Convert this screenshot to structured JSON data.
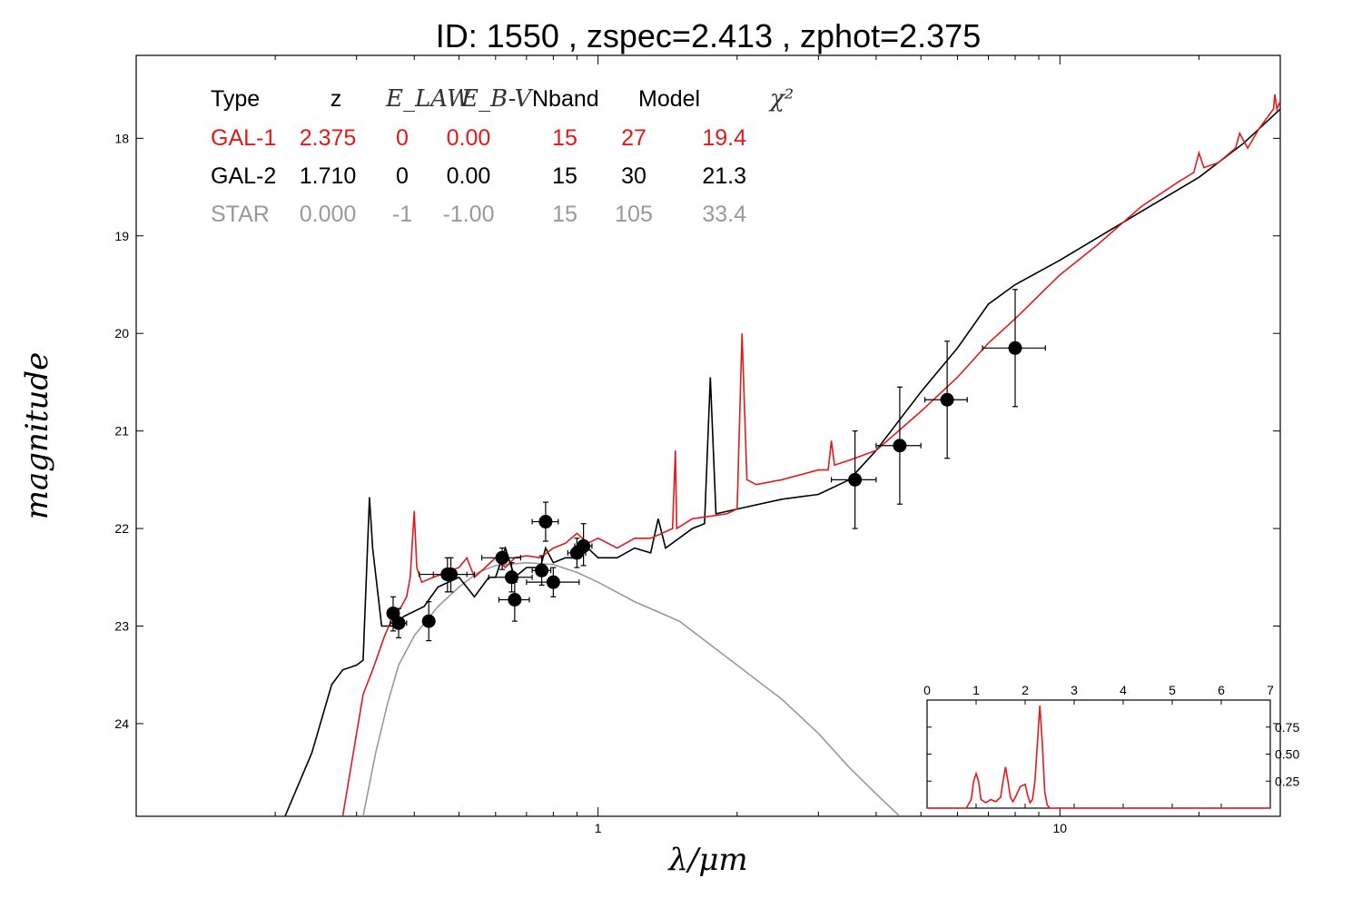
{
  "title": "ID:  1550  , zspec=2.413 , zphot=2.375",
  "colors": {
    "gal1": "#e3191c",
    "gal2": "#000000",
    "star": "#999999",
    "points": "#000000"
  },
  "chart_data": {
    "type": "scatter",
    "title": "ID:  1550  , zspec=2.413 , zphot=2.375",
    "xlabel": "λ/μm",
    "ylabel": "magnitude",
    "x_scale": "log",
    "xlim": [
      0.1,
      30
    ],
    "ylim": [
      24.95,
      17.15
    ],
    "y_inverted": true,
    "grid": false,
    "x_ticks": [
      {
        "v": 1,
        "label": "1"
      },
      {
        "v": 10,
        "label": "10"
      }
    ],
    "y_ticks": [
      {
        "v": 18,
        "label": "18"
      },
      {
        "v": 19,
        "label": "19"
      },
      {
        "v": 20,
        "label": "20"
      },
      {
        "v": 21,
        "label": "21"
      },
      {
        "v": 22,
        "label": "22"
      },
      {
        "v": 23,
        "label": "23"
      },
      {
        "v": 24,
        "label": "24"
      }
    ],
    "legend_table": {
      "headers": [
        "Type",
        "z",
        "E_LAW",
        "E_B-V",
        "Nband",
        "Model",
        "χ²"
      ],
      "rows": [
        {
          "cells": [
            "GAL-1",
            "2.375",
            "0",
            "0.00",
            "15",
            "27",
            "19.4"
          ],
          "color": "#e3191c"
        },
        {
          "cells": [
            "GAL-2",
            "1.710",
            "0",
            "0.00",
            "15",
            "30",
            "21.3"
          ],
          "color": "#000000"
        },
        {
          "cells": [
            "STAR",
            "0.000",
            "-1",
            "-1.00",
            "15",
            "105",
            "33.4"
          ],
          "color": "#999999"
        }
      ]
    },
    "photometry": [
      {
        "x": 0.36,
        "y": 22.87,
        "xerr": [
          0.352,
          0.368
        ],
        "yerr": [
          22.7,
          23.05
        ]
      },
      {
        "x": 0.37,
        "y": 22.97,
        "xerr": [
          0.355,
          0.385
        ],
        "yerr": [
          22.82,
          23.12
        ]
      },
      {
        "x": 0.43,
        "y": 22.95,
        "xerr": [
          0.42,
          0.44
        ],
        "yerr": [
          22.75,
          23.15
        ]
      },
      {
        "x": 0.472,
        "y": 22.47,
        "xerr": [
          0.41,
          0.54
        ],
        "yerr": [
          22.3,
          22.65
        ]
      },
      {
        "x": 0.48,
        "y": 22.47,
        "xerr": [
          0.44,
          0.52
        ],
        "yerr": [
          22.3,
          22.65
        ]
      },
      {
        "x": 0.62,
        "y": 22.3,
        "xerr": [
          0.56,
          0.68
        ],
        "yerr": [
          22.2,
          22.42
        ]
      },
      {
        "x": 0.65,
        "y": 22.5,
        "xerr": [
          0.58,
          0.72
        ],
        "yerr": [
          22.35,
          22.65
        ]
      },
      {
        "x": 0.66,
        "y": 22.73,
        "xerr": [
          0.61,
          0.71
        ],
        "yerr": [
          22.55,
          22.95
        ]
      },
      {
        "x": 0.755,
        "y": 22.43,
        "xerr": [
          0.72,
          0.79
        ],
        "yerr": [
          22.28,
          22.58
        ]
      },
      {
        "x": 0.77,
        "y": 21.93,
        "xerr": [
          0.72,
          0.82
        ],
        "yerr": [
          21.73,
          22.13
        ]
      },
      {
        "x": 0.8,
        "y": 22.55,
        "xerr": [
          0.7,
          0.91
        ],
        "yerr": [
          22.4,
          22.7
        ]
      },
      {
        "x": 0.9,
        "y": 22.25,
        "xerr": [
          0.86,
          0.94
        ],
        "yerr": [
          22.1,
          22.4
        ]
      },
      {
        "x": 0.93,
        "y": 22.18,
        "xerr": [
          0.89,
          0.97
        ],
        "yerr": [
          21.95,
          22.38
        ]
      },
      {
        "x": 3.6,
        "y": 21.5,
        "xerr": [
          3.2,
          4.0
        ],
        "yerr": [
          21.0,
          22.0
        ]
      },
      {
        "x": 4.5,
        "y": 21.15,
        "xerr": [
          4.0,
          5.0
        ],
        "yerr": [
          20.55,
          21.75
        ]
      },
      {
        "x": 5.7,
        "y": 20.68,
        "xerr": [
          5.1,
          6.3
        ],
        "yerr": [
          20.08,
          21.28
        ]
      },
      {
        "x": 8.0,
        "y": 20.15,
        "xerr": [
          6.8,
          9.3
        ],
        "yerr": [
          19.55,
          20.75
        ]
      }
    ],
    "series": [
      {
        "name": "GAL-1",
        "color": "#e3191c",
        "points": [
          [
            0.28,
            24.95
          ],
          [
            0.3,
            24.1
          ],
          [
            0.31,
            23.7
          ],
          [
            0.325,
            23.45
          ],
          [
            0.345,
            23.1
          ],
          [
            0.36,
            22.9
          ],
          [
            0.375,
            22.8
          ],
          [
            0.385,
            22.7
          ],
          [
            0.392,
            22.5
          ],
          [
            0.4,
            21.82
          ],
          [
            0.405,
            22.4
          ],
          [
            0.415,
            22.55
          ],
          [
            0.44,
            22.5
          ],
          [
            0.47,
            22.45
          ],
          [
            0.5,
            22.4
          ],
          [
            0.52,
            22.3
          ],
          [
            0.54,
            22.5
          ],
          [
            0.57,
            22.4
          ],
          [
            0.6,
            22.3
          ],
          [
            0.63,
            22.4
          ],
          [
            0.66,
            22.3
          ],
          [
            0.7,
            22.28
          ],
          [
            0.75,
            22.3
          ],
          [
            0.8,
            22.2
          ],
          [
            0.85,
            22.15
          ],
          [
            0.9,
            22.05
          ],
          [
            0.95,
            22.15
          ],
          [
            1.0,
            22.1
          ],
          [
            1.1,
            22.2
          ],
          [
            1.2,
            22.1
          ],
          [
            1.3,
            22.1
          ],
          [
            1.45,
            22.0
          ],
          [
            1.47,
            21.2
          ],
          [
            1.48,
            22.0
          ],
          [
            1.6,
            21.9
          ],
          [
            1.9,
            21.85
          ],
          [
            2.0,
            21.8
          ],
          [
            2.05,
            20.0
          ],
          [
            2.1,
            21.5
          ],
          [
            2.2,
            21.55
          ],
          [
            2.5,
            21.5
          ],
          [
            3.0,
            21.4
          ],
          [
            3.15,
            21.4
          ],
          [
            3.2,
            21.1
          ],
          [
            3.25,
            21.35
          ],
          [
            3.5,
            21.3
          ],
          [
            4.0,
            21.2
          ],
          [
            5.0,
            20.8
          ],
          [
            6.0,
            20.45
          ],
          [
            7.0,
            20.1
          ],
          [
            8.0,
            19.85
          ],
          [
            10.0,
            19.4
          ],
          [
            12.0,
            19.1
          ],
          [
            15.0,
            18.7
          ],
          [
            18.0,
            18.45
          ],
          [
            19.5,
            18.35
          ],
          [
            20.0,
            18.15
          ],
          [
            20.5,
            18.3
          ],
          [
            22.0,
            18.25
          ],
          [
            24.0,
            18.1
          ],
          [
            24.5,
            17.95
          ],
          [
            25.5,
            18.1
          ],
          [
            27.0,
            17.9
          ],
          [
            29.0,
            17.7
          ],
          [
            29.2,
            17.55
          ],
          [
            29.5,
            17.7
          ],
          [
            30.0,
            17.62
          ]
        ]
      },
      {
        "name": "GAL-2",
        "color": "#000000",
        "points": [
          [
            0.21,
            24.95
          ],
          [
            0.24,
            24.3
          ],
          [
            0.265,
            23.6
          ],
          [
            0.28,
            23.45
          ],
          [
            0.3,
            23.4
          ],
          [
            0.31,
            23.35
          ],
          [
            0.32,
            21.68
          ],
          [
            0.325,
            22.2
          ],
          [
            0.34,
            23.0
          ],
          [
            0.36,
            23.0
          ],
          [
            0.38,
            22.9
          ],
          [
            0.42,
            22.8
          ],
          [
            0.45,
            22.6
          ],
          [
            0.5,
            22.5
          ],
          [
            0.54,
            22.7
          ],
          [
            0.58,
            22.5
          ],
          [
            0.6,
            22.5
          ],
          [
            0.63,
            22.2
          ],
          [
            0.66,
            22.5
          ],
          [
            0.7,
            22.4
          ],
          [
            0.75,
            22.4
          ],
          [
            0.77,
            22.2
          ],
          [
            0.8,
            22.35
          ],
          [
            0.85,
            22.3
          ],
          [
            0.9,
            22.3
          ],
          [
            0.95,
            22.2
          ],
          [
            1.0,
            22.3
          ],
          [
            1.1,
            22.3
          ],
          [
            1.2,
            22.2
          ],
          [
            1.3,
            22.25
          ],
          [
            1.35,
            21.9
          ],
          [
            1.4,
            22.2
          ],
          [
            1.6,
            22.0
          ],
          [
            1.7,
            21.95
          ],
          [
            1.75,
            20.45
          ],
          [
            1.8,
            21.85
          ],
          [
            2.0,
            21.8
          ],
          [
            2.5,
            21.7
          ],
          [
            3.0,
            21.65
          ],
          [
            3.5,
            21.5
          ],
          [
            4.0,
            21.2
          ],
          [
            5.0,
            20.6
          ],
          [
            6.0,
            20.15
          ],
          [
            7.0,
            19.7
          ],
          [
            8.0,
            19.5
          ],
          [
            10.0,
            19.25
          ],
          [
            15.0,
            18.75
          ],
          [
            20.0,
            18.4
          ],
          [
            25.0,
            18.05
          ],
          [
            30.0,
            17.7
          ]
        ]
      },
      {
        "name": "STAR",
        "color": "#999999",
        "points": [
          [
            0.31,
            24.95
          ],
          [
            0.33,
            24.3
          ],
          [
            0.35,
            23.8
          ],
          [
            0.37,
            23.4
          ],
          [
            0.4,
            23.1
          ],
          [
            0.45,
            22.8
          ],
          [
            0.5,
            22.6
          ],
          [
            0.55,
            22.45
          ],
          [
            0.6,
            22.38
          ],
          [
            0.7,
            22.35
          ],
          [
            0.8,
            22.37
          ],
          [
            0.9,
            22.45
          ],
          [
            1.0,
            22.55
          ],
          [
            1.2,
            22.75
          ],
          [
            1.5,
            22.95
          ],
          [
            2.0,
            23.4
          ],
          [
            2.5,
            23.75
          ],
          [
            3.0,
            24.1
          ],
          [
            3.5,
            24.45
          ],
          [
            4.0,
            24.72
          ],
          [
            4.5,
            24.95
          ]
        ]
      }
    ],
    "inset": {
      "type": "line",
      "xlim": [
        0,
        7
      ],
      "ylim": [
        0,
        1.0
      ],
      "x_ticks": [
        {
          "v": 0,
          "label": "0"
        },
        {
          "v": 1,
          "label": "1"
        },
        {
          "v": 2,
          "label": "2"
        },
        {
          "v": 3,
          "label": "3"
        },
        {
          "v": 4,
          "label": "4"
        },
        {
          "v": 5,
          "label": "5"
        },
        {
          "v": 6,
          "label": "6"
        },
        {
          "v": 7,
          "label": "7"
        }
      ],
      "y_ticks": [
        {
          "v": 0.25,
          "label": "0.25"
        },
        {
          "v": 0.5,
          "label": "0.50"
        },
        {
          "v": 0.75,
          "label": "0.75"
        }
      ],
      "series": [
        {
          "name": "",
          "color": "#e3191c",
          "x": [
            0,
            0.8,
            0.9,
            0.95,
            1.0,
            1.05,
            1.1,
            1.2,
            1.3,
            1.4,
            1.5,
            1.55,
            1.6,
            1.65,
            1.7,
            1.75,
            1.8,
            1.9,
            2.0,
            2.05,
            2.1,
            2.15,
            2.2,
            2.25,
            2.3,
            2.35,
            2.4,
            2.45,
            2.5,
            2.6,
            2.8,
            7.0
          ],
          "y": [
            0.0,
            0.0,
            0.08,
            0.25,
            0.32,
            0.25,
            0.08,
            0.05,
            0.08,
            0.06,
            0.1,
            0.25,
            0.38,
            0.25,
            0.1,
            0.06,
            0.1,
            0.2,
            0.22,
            0.12,
            0.05,
            0.08,
            0.25,
            0.6,
            0.95,
            0.6,
            0.15,
            0.03,
            0.0,
            0.0,
            0.0,
            0.0
          ]
        }
      ]
    }
  }
}
